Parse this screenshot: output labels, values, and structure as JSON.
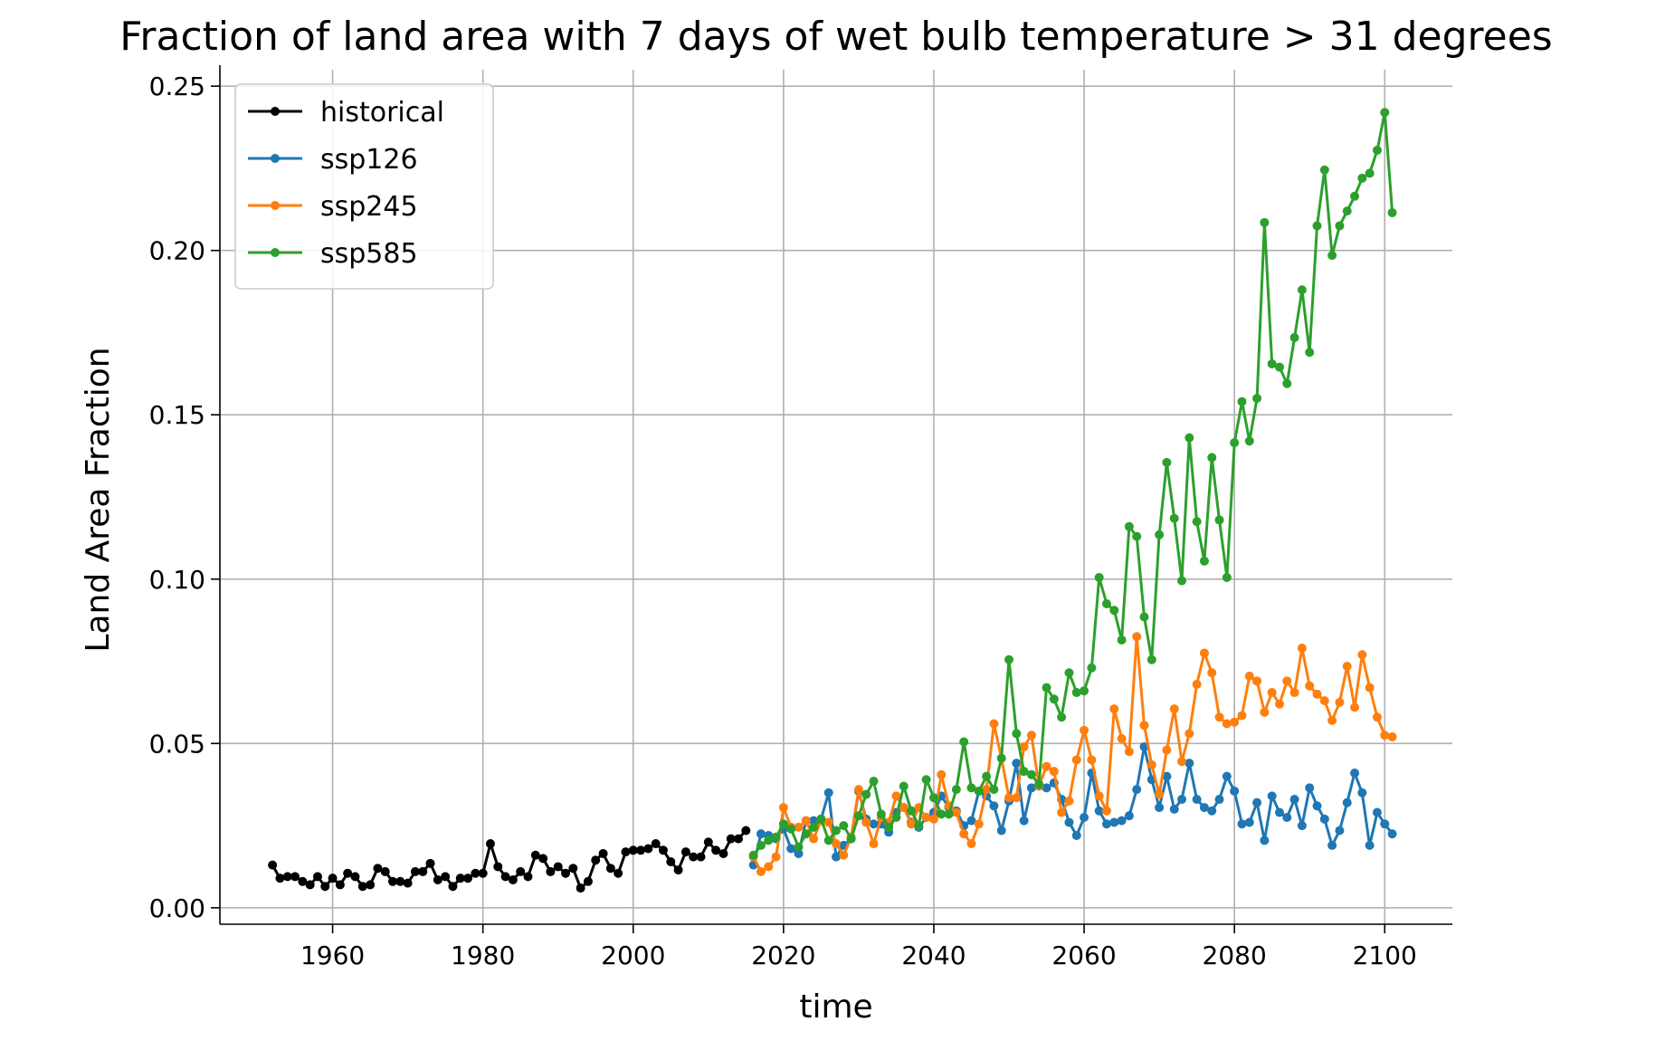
{
  "chart_data": {
    "type": "line",
    "title": "Fraction of land area with 7 days of wet bulb temperature > 31 degrees",
    "xlabel": "time",
    "ylabel": "Land Area Fraction",
    "xlim": [
      1945,
      2109
    ],
    "ylim": [
      -0.005,
      0.255
    ],
    "xticks": [
      1960,
      1980,
      2000,
      2020,
      2040,
      2060,
      2080,
      2100
    ],
    "xtick_labels": [
      "1960",
      "1980",
      "2000",
      "2020",
      "2040",
      "2060",
      "2080",
      "2100"
    ],
    "yticks": [
      0.0,
      0.05,
      0.1,
      0.15,
      0.2,
      0.25
    ],
    "ytick_labels": [
      "0.00",
      "0.05",
      "0.10",
      "0.15",
      "0.20",
      "0.25"
    ],
    "grid": true,
    "legend_position": "top-left",
    "series": [
      {
        "name": "historical",
        "color": "#000000",
        "x": [
          1952,
          1953,
          1954,
          1955,
          1956,
          1957,
          1958,
          1959,
          1960,
          1961,
          1962,
          1963,
          1964,
          1965,
          1966,
          1967,
          1968,
          1969,
          1970,
          1971,
          1972,
          1973,
          1974,
          1975,
          1976,
          1977,
          1978,
          1979,
          1980,
          1981,
          1982,
          1983,
          1984,
          1985,
          1986,
          1987,
          1988,
          1989,
          1990,
          1991,
          1992,
          1993,
          1994,
          1995,
          1996,
          1997,
          1998,
          1999,
          2000,
          2001,
          2002,
          2003,
          2004,
          2005,
          2006,
          2007,
          2008,
          2009,
          2010,
          2011,
          2012,
          2013,
          2014,
          2015
        ],
        "values": [
          0.013,
          0.009,
          0.0095,
          0.0095,
          0.008,
          0.007,
          0.0095,
          0.0065,
          0.009,
          0.007,
          0.0105,
          0.0095,
          0.0065,
          0.007,
          0.012,
          0.011,
          0.008,
          0.008,
          0.0075,
          0.011,
          0.011,
          0.0135,
          0.0085,
          0.0095,
          0.0065,
          0.009,
          0.009,
          0.0105,
          0.0105,
          0.0195,
          0.0125,
          0.0095,
          0.0085,
          0.011,
          0.0095,
          0.016,
          0.015,
          0.011,
          0.0125,
          0.0105,
          0.012,
          0.006,
          0.008,
          0.0145,
          0.0165,
          0.012,
          0.0105,
          0.017,
          0.0175,
          0.0175,
          0.018,
          0.0195,
          0.0175,
          0.014,
          0.0115,
          0.017,
          0.0155,
          0.0155,
          0.02,
          0.0175,
          0.0165,
          0.021,
          0.021,
          0.0235
        ]
      },
      {
        "name": "ssp126",
        "color": "#1f77b4",
        "x": [
          2016,
          2017,
          2018,
          2019,
          2020,
          2021,
          2022,
          2023,
          2024,
          2025,
          2026,
          2027,
          2028,
          2029,
          2030,
          2031,
          2032,
          2033,
          2034,
          2035,
          2036,
          2037,
          2038,
          2039,
          2040,
          2041,
          2042,
          2043,
          2044,
          2045,
          2046,
          2047,
          2048,
          2049,
          2050,
          2051,
          2052,
          2053,
          2054,
          2055,
          2056,
          2057,
          2058,
          2059,
          2060,
          2061,
          2062,
          2063,
          2064,
          2065,
          2066,
          2067,
          2068,
          2069,
          2070,
          2071,
          2072,
          2073,
          2074,
          2075,
          2076,
          2077,
          2078,
          2079,
          2080,
          2081,
          2082,
          2083,
          2084,
          2085,
          2086,
          2087,
          2088,
          2089,
          2090,
          2091,
          2092,
          2093,
          2094,
          2095,
          2096,
          2097,
          2098,
          2099,
          2100,
          2101
        ],
        "values": [
          0.013,
          0.0225,
          0.022,
          0.021,
          0.024,
          0.018,
          0.0165,
          0.0265,
          0.0265,
          0.027,
          0.035,
          0.0155,
          0.019,
          0.021,
          0.0355,
          0.027,
          0.0255,
          0.0255,
          0.023,
          0.029,
          0.0305,
          0.026,
          0.0245,
          0.0275,
          0.029,
          0.034,
          0.0305,
          0.0295,
          0.025,
          0.0265,
          0.0355,
          0.034,
          0.031,
          0.0235,
          0.0325,
          0.044,
          0.0265,
          0.0365,
          0.0375,
          0.0365,
          0.038,
          0.033,
          0.026,
          0.022,
          0.0275,
          0.041,
          0.0295,
          0.0255,
          0.026,
          0.0265,
          0.028,
          0.036,
          0.049,
          0.039,
          0.0305,
          0.04,
          0.03,
          0.033,
          0.044,
          0.033,
          0.0305,
          0.0295,
          0.033,
          0.04,
          0.0355,
          0.0255,
          0.026,
          0.032,
          0.0205,
          0.034,
          0.029,
          0.0275,
          0.033,
          0.025,
          0.0365,
          0.031,
          0.027,
          0.019,
          0.0235,
          0.032,
          0.041,
          0.035,
          0.019,
          0.029,
          0.0255,
          0.0225
        ]
      },
      {
        "name": "ssp245",
        "color": "#ff7f0e",
        "x": [
          2016,
          2017,
          2018,
          2019,
          2020,
          2021,
          2022,
          2023,
          2024,
          2025,
          2026,
          2027,
          2028,
          2029,
          2030,
          2031,
          2032,
          2033,
          2034,
          2035,
          2036,
          2037,
          2038,
          2039,
          2040,
          2041,
          2042,
          2043,
          2044,
          2045,
          2046,
          2047,
          2048,
          2049,
          2050,
          2051,
          2052,
          2053,
          2054,
          2055,
          2056,
          2057,
          2058,
          2059,
          2060,
          2061,
          2062,
          2063,
          2064,
          2065,
          2066,
          2067,
          2068,
          2069,
          2070,
          2071,
          2072,
          2073,
          2074,
          2075,
          2076,
          2077,
          2078,
          2079,
          2080,
          2081,
          2082,
          2083,
          2084,
          2085,
          2086,
          2087,
          2088,
          2089,
          2090,
          2091,
          2092,
          2093,
          2094,
          2095,
          2096,
          2097,
          2098,
          2099,
          2100,
          2101
        ],
        "values": [
          0.0155,
          0.011,
          0.0125,
          0.0155,
          0.0305,
          0.0245,
          0.0245,
          0.0265,
          0.021,
          0.0265,
          0.026,
          0.0195,
          0.016,
          0.0215,
          0.036,
          0.026,
          0.0195,
          0.0275,
          0.026,
          0.034,
          0.0305,
          0.0255,
          0.0305,
          0.0275,
          0.027,
          0.0405,
          0.031,
          0.029,
          0.0225,
          0.0195,
          0.0255,
          0.036,
          0.056,
          0.0455,
          0.0335,
          0.0335,
          0.049,
          0.0525,
          0.037,
          0.043,
          0.0415,
          0.029,
          0.0325,
          0.045,
          0.054,
          0.045,
          0.034,
          0.0295,
          0.0605,
          0.0515,
          0.0475,
          0.0825,
          0.0555,
          0.0435,
          0.0345,
          0.048,
          0.0605,
          0.0445,
          0.053,
          0.068,
          0.0775,
          0.0715,
          0.058,
          0.056,
          0.0565,
          0.0585,
          0.0705,
          0.069,
          0.0595,
          0.0655,
          0.062,
          0.069,
          0.0655,
          0.079,
          0.0675,
          0.065,
          0.063,
          0.057,
          0.0625,
          0.0735,
          0.061,
          0.077,
          0.067,
          0.058,
          0.0525,
          0.052
        ]
      },
      {
        "name": "ssp585",
        "color": "#2ca02c",
        "x": [
          2016,
          2017,
          2018,
          2019,
          2020,
          2021,
          2022,
          2023,
          2024,
          2025,
          2026,
          2027,
          2028,
          2029,
          2030,
          2031,
          2032,
          2033,
          2034,
          2035,
          2036,
          2037,
          2038,
          2039,
          2040,
          2041,
          2042,
          2043,
          2044,
          2045,
          2046,
          2047,
          2048,
          2049,
          2050,
          2051,
          2052,
          2053,
          2054,
          2055,
          2056,
          2057,
          2058,
          2059,
          2060,
          2061,
          2062,
          2063,
          2064,
          2065,
          2066,
          2067,
          2068,
          2069,
          2070,
          2071,
          2072,
          2073,
          2074,
          2075,
          2076,
          2077,
          2078,
          2079,
          2080,
          2081,
          2082,
          2083,
          2084,
          2085,
          2086,
          2087,
          2088,
          2089,
          2090,
          2091,
          2092,
          2093,
          2094,
          2095,
          2096,
          2097,
          2098,
          2099,
          2100,
          2101
        ],
        "values": [
          0.016,
          0.019,
          0.0205,
          0.0215,
          0.0255,
          0.024,
          0.0185,
          0.0225,
          0.0245,
          0.027,
          0.0205,
          0.0235,
          0.025,
          0.021,
          0.028,
          0.0345,
          0.0385,
          0.0285,
          0.0245,
          0.0275,
          0.037,
          0.0295,
          0.025,
          0.039,
          0.0335,
          0.0285,
          0.0285,
          0.036,
          0.0505,
          0.0365,
          0.0355,
          0.04,
          0.036,
          0.0455,
          0.0755,
          0.053,
          0.0415,
          0.0405,
          0.0375,
          0.067,
          0.0635,
          0.058,
          0.0715,
          0.0655,
          0.066,
          0.073,
          0.1005,
          0.0925,
          0.0905,
          0.0815,
          0.116,
          0.113,
          0.0885,
          0.0755,
          0.1135,
          0.1355,
          0.1185,
          0.0995,
          0.143,
          0.1175,
          0.1055,
          0.137,
          0.118,
          0.1005,
          0.1415,
          0.154,
          0.142,
          0.155,
          0.2085,
          0.1655,
          0.1645,
          0.1595,
          0.1735,
          0.188,
          0.169,
          0.2075,
          0.2245,
          0.1985,
          0.2075,
          0.212,
          0.2165,
          0.222,
          0.2235,
          0.2305,
          0.242,
          0.2115
        ]
      }
    ]
  }
}
